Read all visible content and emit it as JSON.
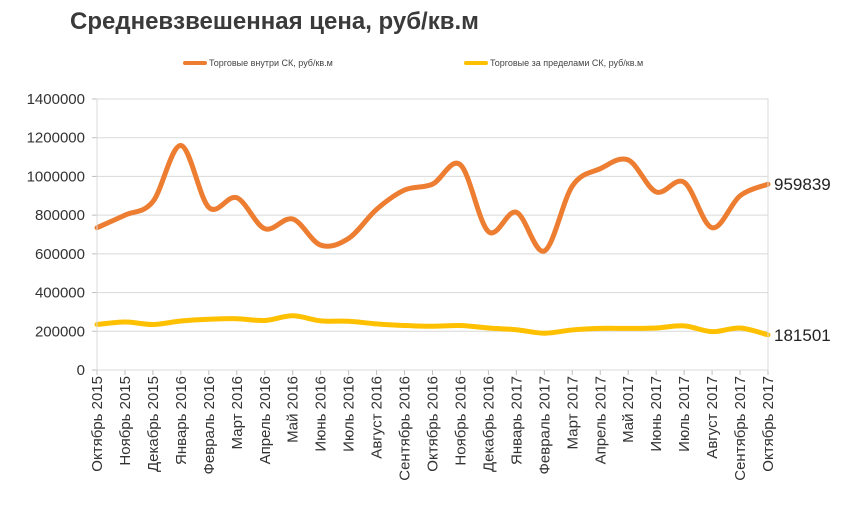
{
  "title": "Средневзвешенная цена, руб/кв.м",
  "chart_data": {
    "type": "line",
    "title": "Средневзвешенная цена, руб/кв.м",
    "categories": [
      "Октябрь 2015",
      "Ноябрь 2015",
      "Декабрь 2015",
      "Январь 2016",
      "Февраль 2016",
      "Март 2016",
      "Апрель 2016",
      "Май 2016",
      "Июнь 2016",
      "Июль 2016",
      "Август 2016",
      "Сентябрь 2016",
      "Октябрь 2016",
      "Ноябрь 2016",
      "Декабрь 2016",
      "Январь 2017",
      "Февраль 2017",
      "Март 2017",
      "Апрель 2017",
      "Май 2017",
      "Июнь 2017",
      "Июль 2017",
      "Август 2017",
      "Сентябрь 2017",
      "Октябрь 2017"
    ],
    "series": [
      {
        "name": "Торговые внутри СК, руб/кв.м",
        "color": "#ED7D31",
        "values": [
          735000,
          800000,
          870000,
          1160000,
          840000,
          890000,
          730000,
          780000,
          645000,
          680000,
          830000,
          930000,
          960000,
          1060000,
          715000,
          815000,
          615000,
          950000,
          1040000,
          1085000,
          920000,
          970000,
          735000,
          900000,
          959839
        ]
      },
      {
        "name": "Торговые за пределами СК, руб/кв.м",
        "color": "#FFC000",
        "values": [
          235000,
          248000,
          235000,
          253000,
          262000,
          265000,
          256000,
          280000,
          254000,
          252000,
          238000,
          230000,
          226000,
          230000,
          217000,
          208000,
          190000,
          207000,
          215000,
          215000,
          217000,
          228000,
          198000,
          217000,
          181501
        ]
      }
    ],
    "end_labels": [
      "959839",
      "181501"
    ],
    "ylim": [
      0,
      1400000
    ],
    "yticks": [
      "0",
      "200000",
      "400000",
      "600000",
      "800000",
      "1000000",
      "1200000",
      "1400000"
    ],
    "grid": true,
    "legend": "top"
  }
}
